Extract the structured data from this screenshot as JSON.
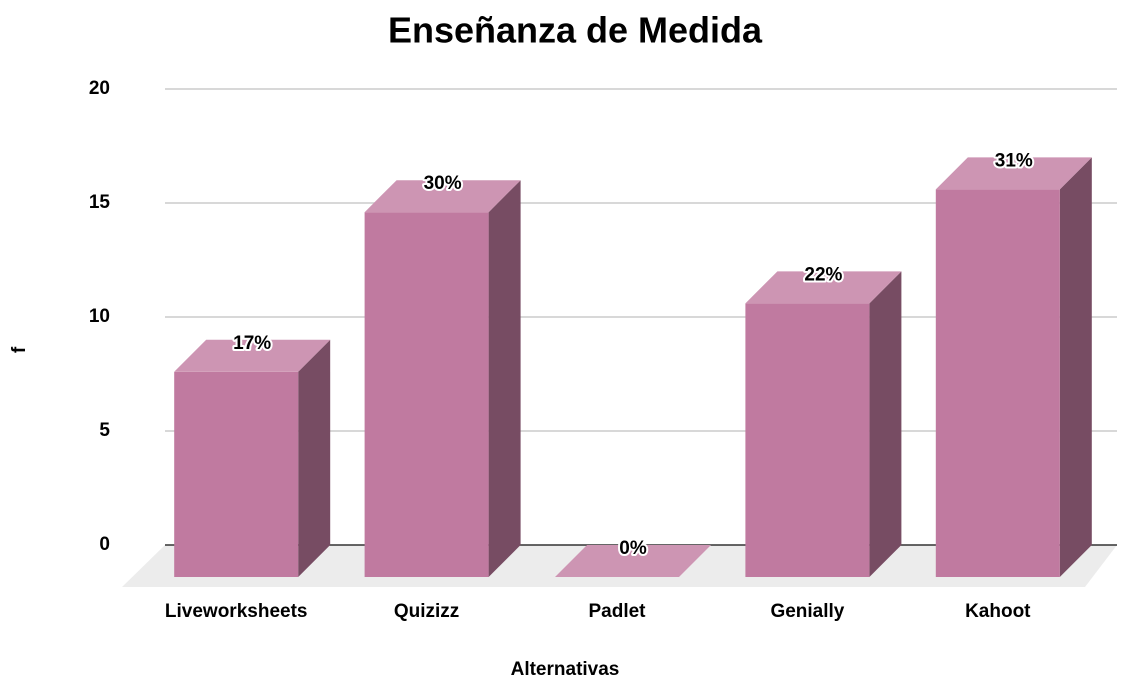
{
  "chart_data": {
    "type": "bar3d",
    "title": "Enseñanza de Medida",
    "x_label": "Alternativas",
    "y_label": "f",
    "categories": [
      "Liveworksheets",
      "Quizizz",
      "Padlet",
      "Genially",
      "Kahoot"
    ],
    "values": [
      9,
      16,
      0,
      12,
      17
    ],
    "value_labels": [
      "17%",
      "30%",
      "0%",
      "22%",
      "31%"
    ],
    "color": "#c07aa0",
    "ylim": [
      0,
      20
    ],
    "yticks": [
      0,
      5,
      10,
      15,
      20
    ],
    "grid": true
  }
}
